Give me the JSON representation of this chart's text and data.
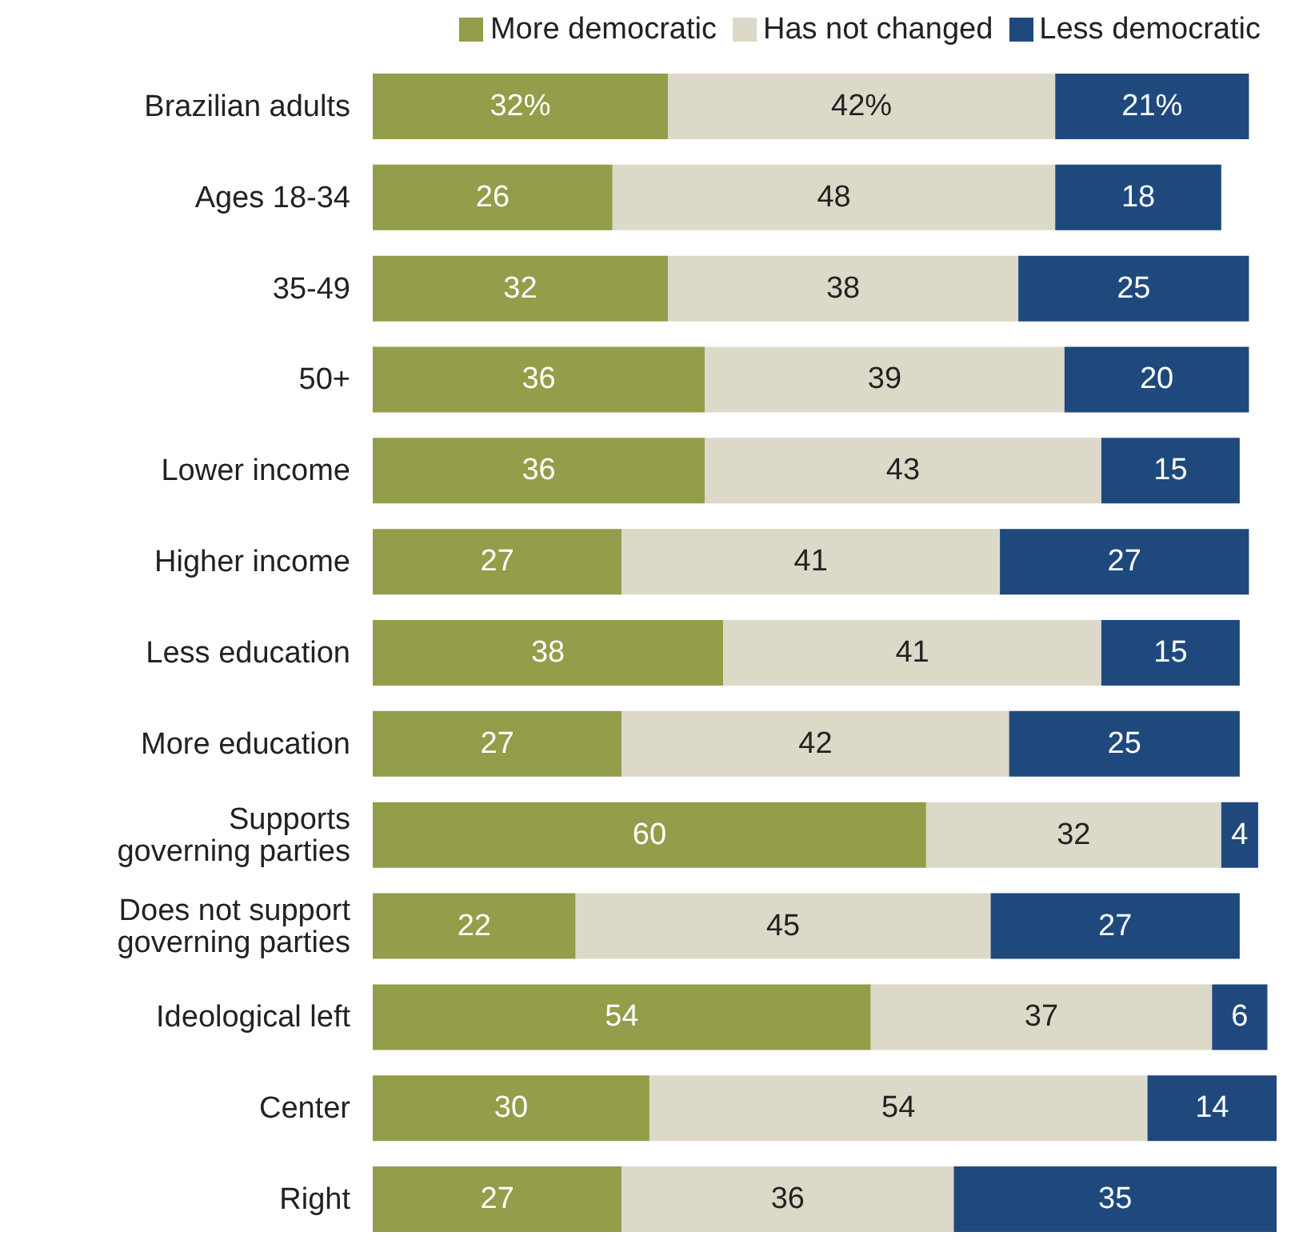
{
  "chart_data": {
    "type": "bar",
    "orientation": "horizontal",
    "stacked": true,
    "legend": "top right",
    "tick_labels": "y",
    "categories": [
      "Brazilian adults",
      "Ages 18-34",
      "35-49",
      "50+",
      "Lower income",
      "Higher income",
      "Less education",
      "More education",
      "Supports governing parties",
      "Does not support governing parties",
      "Ideological left",
      "Center",
      "Right"
    ],
    "series": [
      {
        "name": "More democratic",
        "color": "#939d4a",
        "values": [
          32,
          26,
          32,
          36,
          36,
          27,
          38,
          27,
          60,
          22,
          54,
          30,
          27
        ],
        "value_labels": [
          "32%",
          "26",
          "32",
          "36",
          "36",
          "27",
          "38",
          "27",
          "60",
          "22",
          "54",
          "30",
          "27"
        ]
      },
      {
        "name": "Has not changed",
        "color": "#dcd9c9",
        "values": [
          42,
          48,
          38,
          39,
          43,
          41,
          41,
          42,
          32,
          45,
          37,
          54,
          36
        ],
        "value_labels": [
          "42%",
          "48",
          "38",
          "39",
          "43",
          "41",
          "41",
          "42",
          "32",
          "45",
          "37",
          "54",
          "36"
        ]
      },
      {
        "name": "Less democratic",
        "color": "#1f497d",
        "values": [
          21,
          18,
          25,
          20,
          15,
          27,
          15,
          25,
          4,
          27,
          6,
          14,
          35
        ],
        "value_labels": [
          "21%",
          "18",
          "25",
          "20",
          "15",
          "27",
          "15",
          "25",
          "4",
          "27",
          "6",
          "14",
          "35"
        ]
      }
    ]
  }
}
